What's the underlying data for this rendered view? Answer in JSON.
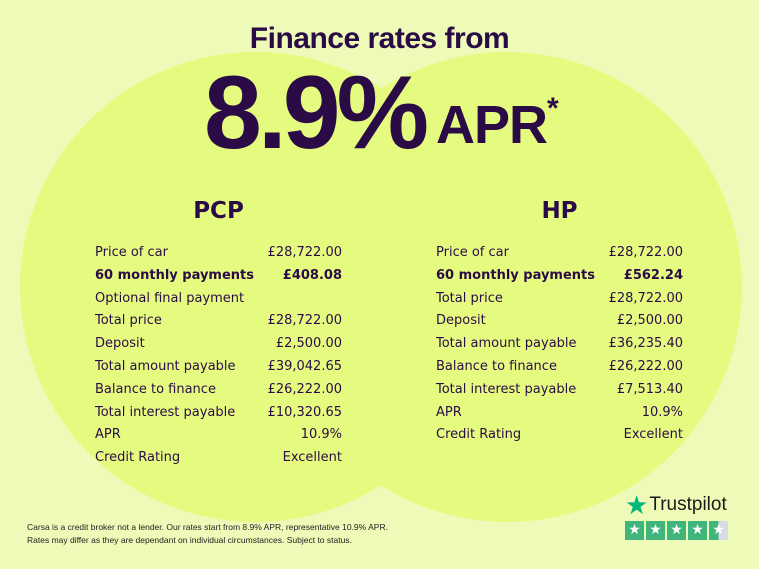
{
  "header": {
    "title": "Finance rates from",
    "rate": "8.9%",
    "apr": "APR",
    "asterisk": "*"
  },
  "pcp": {
    "title": "PCP",
    "rows": [
      {
        "label": "Price of car",
        "value": "£28,722.00",
        "bold": false
      },
      {
        "label": "60 monthly payments",
        "value": "£408.08",
        "bold": true
      },
      {
        "label": "Optional final payment",
        "value": "",
        "bold": false
      },
      {
        "label": "Total price",
        "value": "£28,722.00",
        "bold": false
      },
      {
        "label": "Deposit",
        "value": "£2,500.00",
        "bold": false
      },
      {
        "label": "Total amount payable",
        "value": "£39,042.65",
        "bold": false
      },
      {
        "label": "Balance to finance",
        "value": "£26,222.00",
        "bold": false
      },
      {
        "label": "Total interest payable",
        "value": "£10,320.65",
        "bold": false
      },
      {
        "label": "APR",
        "value": "10.9%",
        "bold": false
      },
      {
        "label": "Credit Rating",
        "value": "Excellent",
        "bold": false
      }
    ]
  },
  "hp": {
    "title": "HP",
    "rows": [
      {
        "label": "Price of car",
        "value": "£28,722.00",
        "bold": false
      },
      {
        "label": "60 monthly payments",
        "value": "£562.24",
        "bold": true
      },
      {
        "label": "Total price",
        "value": "£28,722.00",
        "bold": false
      },
      {
        "label": "Deposit",
        "value": "£2,500.00",
        "bold": false
      },
      {
        "label": "Total amount payable",
        "value": "£36,235.40",
        "bold": false
      },
      {
        "label": "Balance to finance",
        "value": "£26,222.00",
        "bold": false
      },
      {
        "label": "Total interest payable",
        "value": "£7,513.40",
        "bold": false
      },
      {
        "label": "APR",
        "value": "10.9%",
        "bold": false
      },
      {
        "label": "Credit Rating",
        "value": "Excellent",
        "bold": false
      }
    ]
  },
  "disclaimer": {
    "line1": "Carsa is a credit broker not a lender. Our rates start from 8.9% APR, representative 10.9% APR.",
    "line2": "Rates may differ as they are dependant on individual circumstances. Subject to status."
  },
  "trustpilot": {
    "name": "Trustpilot",
    "rating_stars": 4.5,
    "star_color": "#00b67a"
  },
  "colors": {
    "text": "#2b0b45",
    "background": "#eefbb8",
    "circle": "#e5fb80"
  }
}
